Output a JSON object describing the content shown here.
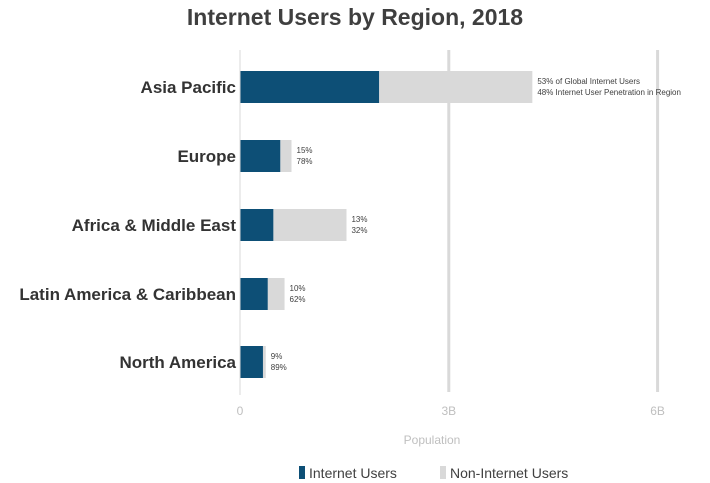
{
  "chart_data": {
    "type": "bar",
    "orientation": "horizontal",
    "stacked": true,
    "title": "Internet Users by Region, 2018",
    "xlabel": "Population",
    "ylabel": "",
    "xlim": [
      0,
      6.5
    ],
    "x_unit": "billions",
    "x_ticks": [
      {
        "value": 0,
        "label": "0"
      },
      {
        "value": 3,
        "label": "3B"
      },
      {
        "value": 6,
        "label": "6B"
      }
    ],
    "grid": true,
    "legend_position": "bottom",
    "categories": [
      "Asia Pacific",
      "Europe",
      "Africa & Middle East",
      "Latin America & Caribbean",
      "North America"
    ],
    "series": [
      {
        "name": "Internet Users",
        "color": "#0d4f76",
        "values": [
          2.0,
          0.58,
          0.48,
          0.4,
          0.33
        ]
      },
      {
        "name": "Non-Internet Users",
        "color": "#d9d9d9",
        "values": [
          2.2,
          0.16,
          1.05,
          0.24,
          0.04
        ]
      }
    ],
    "annotations": [
      {
        "category": "Asia Pacific",
        "line1": "53% of Global Internet Users",
        "line2": "48% Internet User Penetration in Region"
      },
      {
        "category": "Europe",
        "line1": "15%",
        "line2": "78%"
      },
      {
        "category": "Africa & Middle East",
        "line1": "13%",
        "line2": "32%"
      },
      {
        "category": "Latin America & Caribbean",
        "line1": "10%",
        "line2": "62%"
      },
      {
        "category": "North America",
        "line1": "9%",
        "line2": "89%"
      }
    ]
  }
}
